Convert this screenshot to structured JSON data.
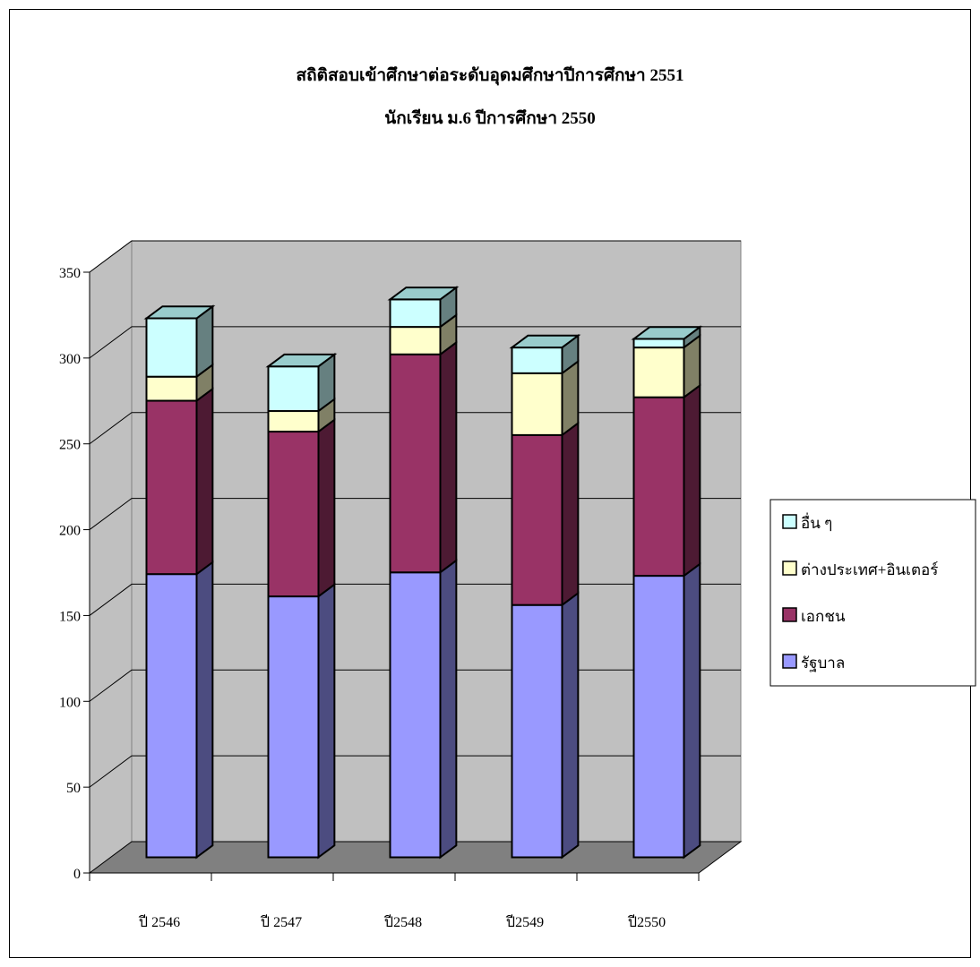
{
  "chart_data": {
    "type": "bar",
    "stacked": true,
    "three_d": true,
    "title": "สถิติสอบเข้าศึกษาต่อระดับอุดมศึกษาปีการศึกษา 2551",
    "subtitle": "นักเรียน ม.6  ปีการศึกษา 2550",
    "xlabel": "",
    "ylabel": "",
    "categories": [
      "ปี 2546",
      "ปี 2547",
      "ปี2548",
      "ปี2549",
      "ปี2550"
    ],
    "ylim": [
      0,
      350
    ],
    "yticks": [
      0,
      50,
      100,
      150,
      200,
      250,
      300,
      350
    ],
    "grid": true,
    "legend_position": "right",
    "series": [
      {
        "name": "รัฐบาล",
        "values": [
          165,
          152,
          166,
          147,
          164
        ],
        "color": "#9999ff",
        "side_color": "#4c4c80",
        "top_color": "#7a7acc"
      },
      {
        "name": "เอกชน",
        "values": [
          101,
          96,
          127,
          99,
          104
        ],
        "color": "#993366",
        "side_color": "#4d1a33",
        "top_color": "#7a2952"
      },
      {
        "name": "ต่างประเทศ+อินเตอร์",
        "values": [
          14,
          12,
          16,
          36,
          29
        ],
        "color": "#ffffcc",
        "side_color": "#808066",
        "top_color": "#ccccA3"
      },
      {
        "name": "อื่น ๆ",
        "values": [
          34,
          26,
          16,
          15,
          5
        ],
        "color": "#ccffff",
        "side_color": "#668080",
        "top_color": "#99cccc"
      }
    ],
    "legend_order": [
      "อื่น ๆ",
      "ต่างประเทศ+อินเตอร์",
      "เอกชน",
      "รัฐบาล"
    ],
    "colors": {
      "wall": "#c0c0c0",
      "floor": "#808080",
      "gridline": "#000000"
    }
  }
}
